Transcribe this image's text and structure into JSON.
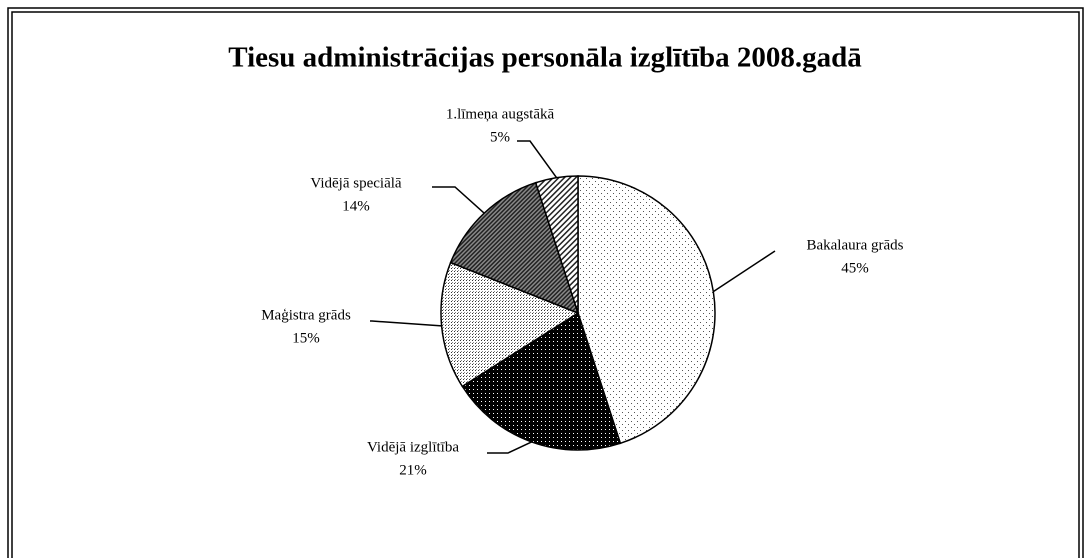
{
  "chart_data": {
    "type": "pie",
    "title": "Tiesu administrācijas personāla izglītība 2008.gadā",
    "categories": [
      "Bakalaura grāds",
      "Vidējā izglītība",
      "Maģistra grāds",
      "Vidējā speciālā",
      "1.līmeņa augstākā"
    ],
    "values": [
      45,
      21,
      15,
      14,
      5
    ],
    "value_labels": [
      "45%",
      "21%",
      "15%",
      "14%",
      "5%"
    ]
  }
}
